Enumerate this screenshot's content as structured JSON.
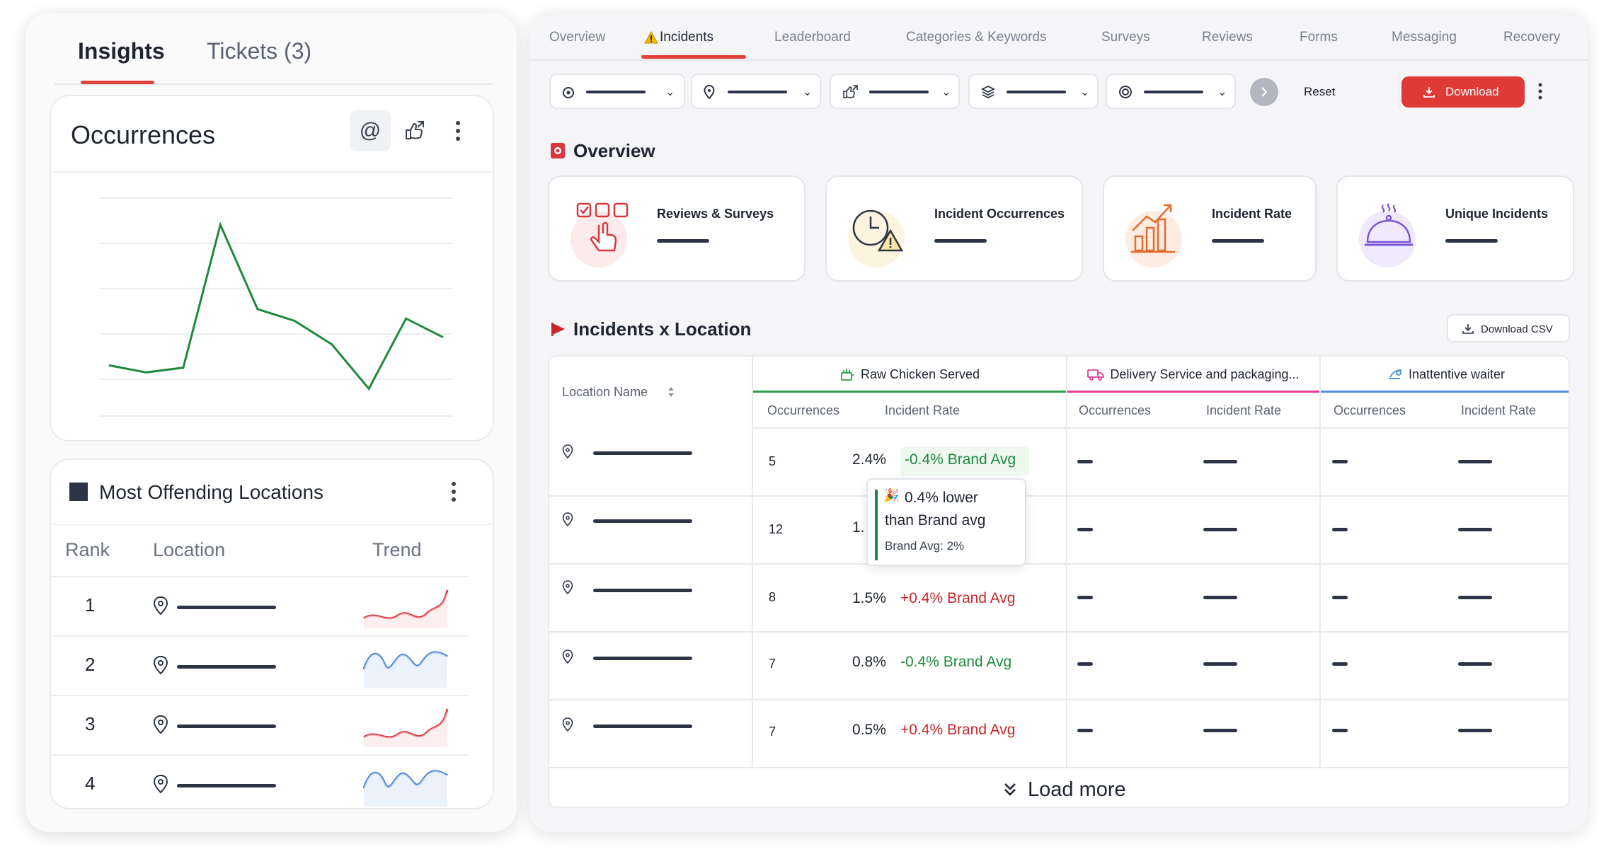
{
  "left": {
    "tabs": [
      {
        "label": "Insights",
        "active": true
      },
      {
        "label": "Tickets (3)",
        "active": false
      }
    ],
    "occurrences": {
      "title": "Occurrences",
      "mention_icon": "at-icon",
      "share_icon": "share-icon",
      "menu_icon": "more-vertical-icon",
      "chart_data": {
        "type": "line",
        "x": [
          1,
          2,
          3,
          4,
          5,
          6,
          7,
          8,
          9,
          10
        ],
        "values": [
          38,
          35,
          37,
          98,
          62,
          57,
          47,
          28,
          58,
          50
        ],
        "ylim": [
          20,
          110
        ],
        "line_color": "#1e8a3c",
        "grid": true
      }
    },
    "most_offending": {
      "title": "Most Offending Locations",
      "headers": {
        "rank": "Rank",
        "location": "Location",
        "trend": "Trend"
      },
      "rows": [
        {
          "rank": "1",
          "trend": "up"
        },
        {
          "rank": "2",
          "trend": "wave"
        },
        {
          "rank": "3",
          "trend": "up"
        },
        {
          "rank": "4",
          "trend": "wave"
        }
      ]
    }
  },
  "right": {
    "tabs": [
      {
        "label": "Overview",
        "active": false
      },
      {
        "label": "Incidents",
        "active": true,
        "icon": "warning-icon"
      },
      {
        "label": "Leaderboard",
        "active": false
      },
      {
        "label": "Categories & Keywords",
        "active": false
      },
      {
        "label": "Surveys",
        "active": false
      },
      {
        "label": "Reviews",
        "active": false
      },
      {
        "label": "Forms",
        "active": false
      },
      {
        "label": "Messaging",
        "active": false
      },
      {
        "label": "Recovery",
        "active": false
      }
    ],
    "filters": {
      "reset_label": "Reset",
      "download_label": "Download"
    },
    "overview": {
      "title": "Overview",
      "kpis": [
        {
          "label": "Reviews & Surveys",
          "icon": "checklist-pointer-icon",
          "accent": "#d9363e"
        },
        {
          "label": "Incident Occurrences",
          "icon": "clock-warning-icon",
          "accent": "#d49a1a"
        },
        {
          "label": "Incident Rate",
          "icon": "growth-chart-icon",
          "accent": "#e66a2c"
        },
        {
          "label": "Unique Incidents",
          "icon": "cloche-icon",
          "accent": "#7b54d6"
        }
      ]
    },
    "incidents_location": {
      "title": "Incidents x Location",
      "download_csv": "Download CSV",
      "location_header": "Location Name",
      "groups": [
        {
          "label": "Raw Chicken Served",
          "color": "#2a9d4a"
        },
        {
          "label": "Delivery Service and packaging...",
          "color": "#e0409a"
        },
        {
          "label": "Inattentive waiter",
          "color": "#4a8fe0"
        }
      ],
      "sub_headers": [
        "Occurrences",
        "Incident Rate"
      ],
      "rows": [
        {
          "occ": "5",
          "rate": "2.4%",
          "delta": "-0.4% Brand Avg",
          "good": true
        },
        {
          "occ": "12",
          "rate": "1.",
          "delta": "",
          "good": true
        },
        {
          "occ": "8",
          "rate": "1.5%",
          "delta": "+0.4% Brand Avg",
          "good": false
        },
        {
          "occ": "7",
          "rate": "0.8%",
          "delta": "-0.4% Brand Avg",
          "good": true
        },
        {
          "occ": "7",
          "rate": "0.5%",
          "delta": "+0.4% Brand Avg",
          "good": false
        }
      ],
      "tooltip": {
        "line1": "0.4% lower",
        "line2": "than Brand avg",
        "line3": "Brand Avg: 2%"
      },
      "load_more": "Load more"
    }
  }
}
